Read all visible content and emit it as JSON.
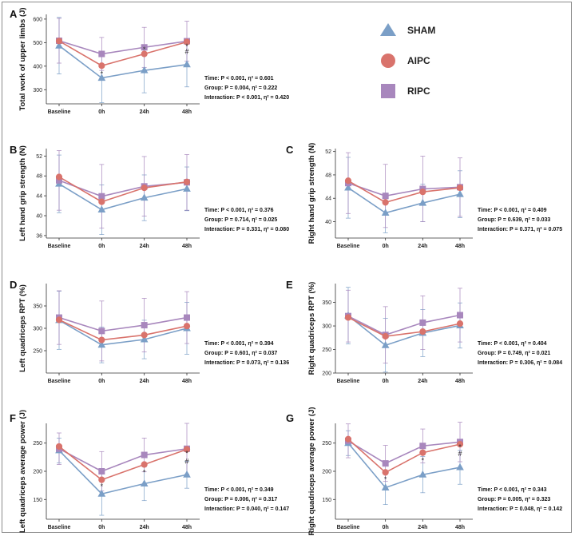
{
  "legend": [
    {
      "name": "SHAM",
      "color": "#7b9fc7",
      "marker": "triangle"
    },
    {
      "name": "AIPC",
      "color": "#d9736c",
      "marker": "circle"
    },
    {
      "name": "RIPC",
      "color": "#a887bd",
      "marker": "square"
    }
  ],
  "chart_data": [
    {
      "type": "line",
      "panel": "A",
      "title": "",
      "ylabel": "Total work of upper limbs (J)",
      "categories": [
        "Baseline",
        "0h",
        "24h",
        "48h"
      ],
      "yticks": [
        300,
        400,
        500,
        600
      ],
      "ylim": [
        240,
        620
      ],
      "series": [
        {
          "name": "SHAM",
          "values": [
            487,
            350,
            382,
            407
          ],
          "err": [
            120,
            105,
            95,
            95
          ]
        },
        {
          "name": "AIPC",
          "values": [
            507,
            402,
            452,
            503
          ],
          "err": [
            0,
            0,
            0,
            0
          ]
        },
        {
          "name": "RIPC",
          "values": [
            508,
            452,
            480,
            506
          ],
          "err": [
            95,
            70,
            85,
            85
          ]
        }
      ],
      "annotations": [
        {
          "x": "0h",
          "y": 368,
          "text": "*"
        },
        {
          "x": "24h",
          "y": 470,
          "text": "*"
        },
        {
          "x": "48h",
          "y": 462,
          "text": "#"
        },
        {
          "x": "48h",
          "y": 485,
          "text": "*"
        }
      ],
      "stats": [
        "Time: P < 0.001, η² = 0.601",
        "Group: P = 0.004, η² = 0.222",
        "Interaction: P < 0.001, η² = 0.420"
      ]
    },
    {
      "type": "line",
      "panel": "B",
      "title": "",
      "ylabel": "Left hand grip strength (N)",
      "categories": [
        "Baseline",
        "0h",
        "24h",
        "48h"
      ],
      "yticks": [
        36,
        40,
        44,
        48,
        52
      ],
      "ylim": [
        35.5,
        53.5
      ],
      "series": [
        {
          "name": "SHAM",
          "values": [
            46.4,
            41.2,
            43.6,
            45.4
          ],
          "err": [
            5.8,
            5.0,
            4.6,
            4.4
          ]
        },
        {
          "name": "AIPC",
          "values": [
            47.8,
            42.8,
            45.6,
            46.8
          ],
          "err": [
            0,
            0,
            0,
            0
          ]
        },
        {
          "name": "RIPC",
          "values": [
            47.1,
            43.9,
            45.9,
            46.7
          ],
          "err": [
            6.0,
            6.4,
            6.0,
            5.6
          ]
        }
      ],
      "annotations": [],
      "stats": [
        "Time: P < 0.001, η² = 0.376",
        "Group: P = 0.714, η² = 0.025",
        "Interaction: P = 0.331, η² = 0.080"
      ]
    },
    {
      "type": "line",
      "panel": "C",
      "title": "",
      "ylabel": "Right hand grip strength (N)",
      "categories": [
        "Baseline",
        "0h",
        "24h",
        "48h"
      ],
      "yticks": [
        40,
        44,
        48,
        52
      ],
      "ylim": [
        37.2,
        52.5
      ],
      "series": [
        {
          "name": "SHAM",
          "values": [
            45.8,
            41.5,
            43.2,
            44.7
          ],
          "err": [
            5.2,
            3.4,
            3.2,
            4.0
          ]
        },
        {
          "name": "AIPC",
          "values": [
            47.0,
            43.3,
            45.1,
            45.8
          ],
          "err": [
            0,
            0,
            0,
            0
          ]
        },
        {
          "name": "RIPC",
          "values": [
            46.6,
            44.4,
            45.6,
            45.9
          ],
          "err": [
            5.2,
            5.4,
            5.6,
            5.0
          ]
        }
      ],
      "annotations": [],
      "stats": [
        "Time: P < 0.001, η² = 0.409",
        "Group: P = 0.639, η² = 0.033",
        "Interaction: P = 0.371, η² = 0.075"
      ]
    },
    {
      "type": "line",
      "panel": "D",
      "title": "",
      "ylabel": "Left quadriceps RPT (%)",
      "categories": [
        "Baseline",
        "0h",
        "24h",
        "48h"
      ],
      "yticks": [
        250,
        300,
        350
      ],
      "ylim": [
        200,
        400
      ],
      "series": [
        {
          "name": "SHAM",
          "values": [
            318,
            263,
            275,
            300
          ],
          "err": [
            65,
            40,
            43,
            58
          ]
        },
        {
          "name": "AIPC",
          "values": [
            319,
            274,
            285,
            305
          ],
          "err": [
            0,
            0,
            0,
            0
          ]
        },
        {
          "name": "RIPC",
          "values": [
            324,
            294,
            307,
            324
          ],
          "err": [
            60,
            67,
            60,
            58
          ]
        }
      ],
      "annotations": [],
      "stats": [
        "Time: P < 0.001, η² = 0.394",
        "Group: P = 0.601, η² = 0.037",
        "Interaction: P = 0.073, η² = 0.136"
      ]
    },
    {
      "type": "line",
      "panel": "E",
      "title": "",
      "ylabel": "Right quadriceps RPT (%)",
      "categories": [
        "Baseline",
        "0h",
        "24h",
        "48h"
      ],
      "yticks": [
        200,
        250,
        300,
        350
      ],
      "ylim": [
        200,
        390
      ],
      "series": [
        {
          "name": "SHAM",
          "values": [
            322,
            259,
            285,
            301
          ],
          "err": [
            60,
            57,
            50,
            48
          ]
        },
        {
          "name": "AIPC",
          "values": [
            318,
            278,
            288,
            305
          ],
          "err": [
            0,
            0,
            0,
            0
          ]
        },
        {
          "name": "RIPC",
          "values": [
            321,
            281,
            307,
            323
          ],
          "err": [
            55,
            60,
            57,
            57
          ]
        }
      ],
      "annotations": [],
      "stats": [
        "Time: P < 0.001, η² = 0.404",
        "Group: P = 0.749, η² = 0.021",
        "Interaction: P = 0.306, η² = 0.084"
      ]
    },
    {
      "type": "line",
      "panel": "F",
      "title": "",
      "ylabel": "Left quadriceps average power (J)",
      "categories": [
        "Baseline",
        "0h",
        "24h",
        "48h"
      ],
      "yticks": [
        150,
        200,
        250
      ],
      "ylim": [
        115,
        285
      ],
      "series": [
        {
          "name": "SHAM",
          "values": [
            237,
            160,
            178,
            194
          ],
          "err": [
            22,
            38,
            30,
            24
          ]
        },
        {
          "name": "AIPC",
          "values": [
            244,
            185,
            212,
            239
          ],
          "err": [
            0,
            0,
            0,
            0
          ]
        },
        {
          "name": "RIPC",
          "values": [
            240,
            200,
            229,
            240
          ],
          "err": [
            28,
            35,
            30,
            45
          ]
        }
      ],
      "annotations": [
        {
          "x": "0h",
          "y": 173,
          "text": "*"
        },
        {
          "x": "24h",
          "y": 198,
          "text": "*"
        },
        {
          "x": "48h",
          "y": 218,
          "text": "#"
        },
        {
          "x": "48h",
          "y": 232,
          "text": "*"
        }
      ],
      "stats": [
        "Time: P < 0.001, η² = 0.349",
        "Group: P = 0.006, η² = 0.317",
        "Interaction: P = 0.040, η² = 0.147"
      ]
    },
    {
      "type": "line",
      "panel": "G",
      "title": "",
      "ylabel": "Right quadriceps average power (J)",
      "categories": [
        "Baseline",
        "0h",
        "24h",
        "48h"
      ],
      "yticks": [
        150,
        200,
        250
      ],
      "ylim": [
        115,
        285
      ],
      "series": [
        {
          "name": "SHAM",
          "values": [
            250,
            171,
            194,
            207
          ],
          "err": [
            22,
            30,
            32,
            30
          ]
        },
        {
          "name": "AIPC",
          "values": [
            257,
            198,
            233,
            248
          ],
          "err": [
            0,
            0,
            0,
            0
          ]
        },
        {
          "name": "RIPC",
          "values": [
            254,
            214,
            245,
            252
          ],
          "err": [
            30,
            32,
            30,
            35
          ]
        }
      ],
      "annotations": [
        {
          "x": "0h",
          "y": 186,
          "text": "*"
        },
        {
          "x": "24h",
          "y": 219,
          "text": "*"
        },
        {
          "x": "48h",
          "y": 231,
          "text": "#"
        },
        {
          "x": "48h",
          "y": 243,
          "text": "*"
        }
      ],
      "stats": [
        "Time: P < 0.001, η² = 0.343",
        "Group: P = 0.005, η² = 0.323",
        "Interaction: P = 0.048, η² = 0.142"
      ]
    }
  ]
}
